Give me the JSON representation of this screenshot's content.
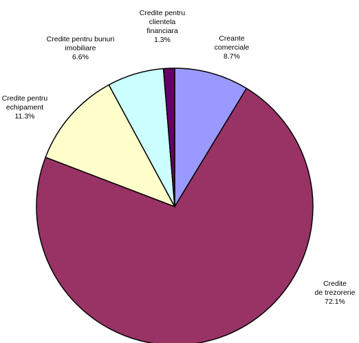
{
  "chart_data": {
    "type": "pie",
    "title": "",
    "slices": [
      {
        "label": [
          "Creante",
          "comerciale"
        ],
        "value": 8.7,
        "value_label": "8.7%",
        "color": "#9999ff"
      },
      {
        "label": [
          "Credite",
          "de trezorerie"
        ],
        "value": 72.1,
        "value_label": "72.1%",
        "color": "#993366"
      },
      {
        "label": [
          "Credite pentru",
          "echipament"
        ],
        "value": 11.3,
        "value_label": "11.3%",
        "color": "#ffffcc"
      },
      {
        "label": [
          "Credite pentru bunuri",
          "imobiliare"
        ],
        "value": 6.6,
        "value_label": "6.6%",
        "color": "#ccffff"
      },
      {
        "label": [
          "Credite pentru",
          "clientela",
          "financiara"
        ],
        "value": 1.3,
        "value_label": "1.3%",
        "color": "#660066"
      }
    ],
    "start": "12 o'clock",
    "direction": "clockwise",
    "legend": "none"
  }
}
